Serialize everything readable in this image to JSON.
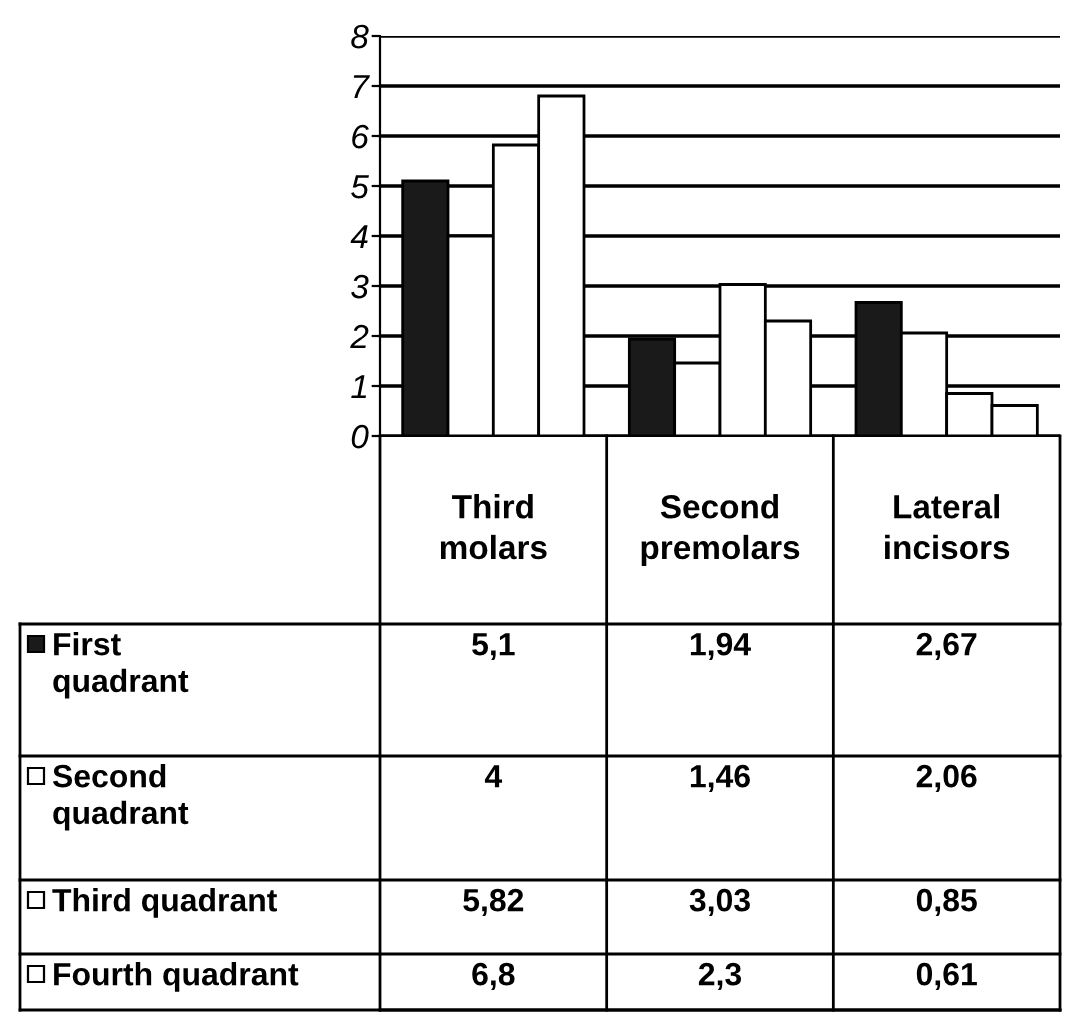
{
  "chart_data": {
    "type": "bar",
    "categories": [
      "Third\nmolars",
      "Second\npremolars",
      "Lateral\nincisors"
    ],
    "series": [
      {
        "name": "First\nquadrant",
        "color": "#1a1a1a",
        "values": [
          5.1,
          1.94,
          2.67
        ],
        "value_labels": [
          "5,1",
          "1,94",
          "2,67"
        ]
      },
      {
        "name": "Second\nquadrant",
        "color": "#ffffff",
        "values": [
          4,
          1.46,
          2.06
        ],
        "value_labels": [
          "4",
          "1,46",
          "2,06"
        ]
      },
      {
        "name": "Third quadrant",
        "color": "#ffffff",
        "values": [
          5.82,
          3.03,
          0.85
        ],
        "value_labels": [
          "5,82",
          "3,03",
          "0,85"
        ]
      },
      {
        "name": "Fourth quadrant",
        "color": "#ffffff",
        "values": [
          6.8,
          2.3,
          0.61
        ],
        "value_labels": [
          "6,8",
          "2,3",
          "0,61"
        ]
      }
    ],
    "ylim": [
      0,
      8
    ],
    "yticks": [
      0,
      1,
      2,
      3,
      4,
      5,
      6,
      7,
      8
    ],
    "grid": "y",
    "legend": "bottom left"
  }
}
